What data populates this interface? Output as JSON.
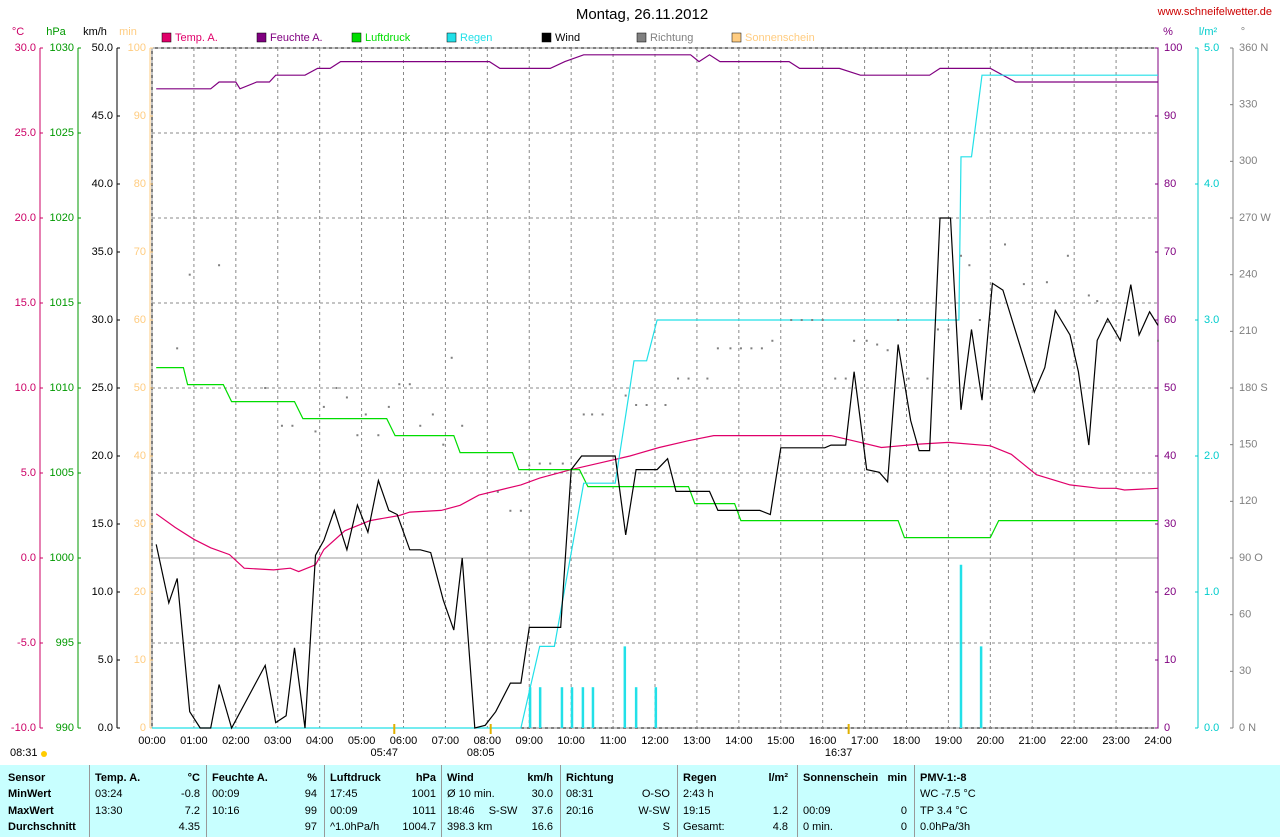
{
  "chart_data": {
    "type": "line",
    "title": "Montag, 26.11.2012",
    "source": "www.schneifelwetter.de",
    "xlim": [
      0,
      24
    ],
    "xticks": [
      {
        "value": 0,
        "label": "00:00"
      },
      {
        "value": 1,
        "label": "01:00"
      },
      {
        "value": 2,
        "label": "02:00"
      },
      {
        "value": 3,
        "label": "03:00"
      },
      {
        "value": 4,
        "label": "04:00"
      },
      {
        "value": 5,
        "label": "05:00"
      },
      {
        "value": 6,
        "label": "06:00"
      },
      {
        "value": 7,
        "label": "07:00"
      },
      {
        "value": 8,
        "label": "08:00"
      },
      {
        "value": 9,
        "label": "09:00"
      },
      {
        "value": 10,
        "label": "10:00"
      },
      {
        "value": 11,
        "label": "11:00"
      },
      {
        "value": 12,
        "label": "12:00"
      },
      {
        "value": 13,
        "label": "13:00"
      },
      {
        "value": 14,
        "label": "14:00"
      },
      {
        "value": 15,
        "label": "15:00"
      },
      {
        "value": 16,
        "label": "16:00"
      },
      {
        "value": 17,
        "label": "17:00"
      },
      {
        "value": 18,
        "label": "18:00"
      },
      {
        "value": 19,
        "label": "19:00"
      },
      {
        "value": 20,
        "label": "20:00"
      },
      {
        "value": 21,
        "label": "21:00"
      },
      {
        "value": 22,
        "label": "22:00"
      },
      {
        "value": 23,
        "label": "23:00"
      },
      {
        "value": 24,
        "label": "24:00"
      }
    ],
    "grid": true,
    "y_axes": [
      {
        "label": "°C",
        "side": "left",
        "color": "#cc0066",
        "ylim": [
          -10,
          30
        ],
        "yticks": [
          {
            "value": -10,
            "label": "-10.0"
          },
          {
            "value": -5,
            "label": "-5.0"
          },
          {
            "value": 0,
            "label": "0.0"
          },
          {
            "value": 5,
            "label": "5.0"
          },
          {
            "value": 10,
            "label": "10.0"
          },
          {
            "value": 15,
            "label": "15.0"
          },
          {
            "value": 20,
            "label": "20.0"
          },
          {
            "value": 25,
            "label": "25.0"
          },
          {
            "value": 30,
            "label": "30.0"
          }
        ]
      },
      {
        "label": "hPa",
        "side": "left",
        "color": "#009900",
        "ylim": [
          990,
          1030
        ],
        "yticks": [
          990,
          995,
          1000,
          1005,
          1010,
          1015,
          1020,
          1025,
          1030
        ]
      },
      {
        "label": "km/h",
        "side": "left",
        "color": "#000000",
        "ylim": [
          0,
          50
        ],
        "yticks": [
          {
            "value": 0,
            "label": "0.0"
          },
          {
            "value": 5,
            "label": "5.0"
          },
          {
            "value": 10,
            "label": "10.0"
          },
          {
            "value": 15,
            "label": "15.0"
          },
          {
            "value": 20,
            "label": "20.0"
          },
          {
            "value": 25,
            "label": "25.0"
          },
          {
            "value": 30,
            "label": "30.0"
          },
          {
            "value": 35,
            "label": "35.0"
          },
          {
            "value": 40,
            "label": "40.0"
          },
          {
            "value": 45,
            "label": "45.0"
          },
          {
            "value": 50,
            "label": "50.0"
          }
        ]
      },
      {
        "label": "min",
        "side": "left",
        "color": "#ffcc80",
        "ylim": [
          0,
          100
        ],
        "yticks": [
          0,
          10,
          20,
          30,
          40,
          50,
          60,
          70,
          80,
          90,
          100
        ]
      },
      {
        "label": "%",
        "side": "right",
        "color": "#800080",
        "ylim": [
          0,
          100
        ],
        "yticks": [
          0,
          10,
          20,
          30,
          40,
          50,
          60,
          70,
          80,
          90,
          100
        ]
      },
      {
        "label": "l/m²",
        "side": "right",
        "color": "#00cccc",
        "ylim": [
          0,
          5
        ],
        "yticks": [
          {
            "value": 0,
            "label": "0.0"
          },
          {
            "value": 1,
            "label": "1.0"
          },
          {
            "value": 2,
            "label": "2.0"
          },
          {
            "value": 3,
            "label": "3.0"
          },
          {
            "value": 4,
            "label": "4.0"
          },
          {
            "value": 5,
            "label": "5.0"
          }
        ]
      },
      {
        "label": "°",
        "side": "right",
        "color": "#808080",
        "ylim": [
          0,
          360
        ],
        "yticks": [
          {
            "value": 0,
            "label": "0 N"
          },
          30,
          60,
          {
            "value": 90,
            "label": "90 O"
          },
          120,
          150,
          {
            "value": 180,
            "label": "180 S"
          },
          210,
          240,
          {
            "value": 270,
            "label": "270 W"
          },
          300,
          330,
          {
            "value": 360,
            "label": "360 N"
          }
        ]
      }
    ],
    "series": [
      {
        "name": "Temp. A.",
        "color": "#e0006a",
        "axis": "°C",
        "x": [
          0.1,
          0.55,
          1.0,
          1.4,
          1.85,
          2.2,
          2.9,
          3.3,
          3.5,
          3.9,
          4.1,
          4.6,
          5.2,
          5.9,
          6.15,
          6.9,
          7.35,
          7.8,
          8.3,
          8.8,
          9.25,
          10.0,
          10.7,
          11.4,
          12.1,
          12.8,
          13.4,
          16.2,
          16.9,
          17.4,
          18.3,
          19.0,
          20.0,
          20.5,
          21.1,
          21.9,
          22.6,
          23.0,
          23.2,
          24.0
        ],
        "values": [
          2.6,
          1.8,
          1.1,
          0.6,
          0.2,
          -0.6,
          -0.7,
          -0.6,
          -0.8,
          -0.4,
          0.5,
          1.6,
          2.2,
          2.5,
          2.7,
          2.8,
          3.1,
          3.7,
          4.0,
          4.3,
          4.7,
          5.2,
          5.6,
          6.0,
          6.5,
          6.9,
          7.2,
          7.2,
          6.8,
          6.5,
          6.7,
          6.8,
          6.6,
          6.1,
          4.9,
          4.3,
          4.1,
          4.1,
          4.0,
          4.1
        ]
      },
      {
        "name": "Feuchte A.",
        "color": "#800080",
        "axis": "%",
        "x": [
          0.1,
          1.4,
          1.6,
          2.0,
          2.1,
          2.5,
          2.8,
          2.95,
          3.65,
          3.95,
          4.25,
          4.5,
          8.05,
          8.3,
          9.5,
          9.85,
          10.3,
          12.85,
          13.05,
          13.3,
          13.55,
          15.2,
          15.45,
          16.4,
          16.9,
          18.55,
          18.8,
          20.0,
          20.6,
          24.0
        ],
        "values": [
          94,
          94,
          95,
          95,
          94,
          95,
          95,
          96,
          96,
          97,
          97,
          98,
          98,
          97,
          97,
          98,
          99,
          99,
          98,
          99,
          98,
          98,
          97,
          97,
          96,
          96,
          97,
          97,
          95,
          95
        ]
      },
      {
        "name": "Luftdruck",
        "color": "#00dd00",
        "axis": "hPa",
        "x": [
          0.1,
          0.75,
          0.85,
          1.7,
          1.9,
          3.4,
          3.6,
          5.6,
          5.8,
          7.2,
          7.35,
          8.6,
          8.75,
          10.2,
          10.4,
          12.8,
          12.95,
          13.9,
          14.05,
          17.8,
          17.95,
          20.0,
          20.2,
          24.0
        ],
        "values": [
          1011.2,
          1011.2,
          1010.2,
          1010.2,
          1009.2,
          1009.2,
          1008.2,
          1008.2,
          1007.2,
          1007.2,
          1006.2,
          1006.2,
          1005.2,
          1005.2,
          1004.2,
          1004.2,
          1003.2,
          1003.2,
          1002.2,
          1002.2,
          1001.2,
          1001.2,
          1002.2,
          1002.2
        ]
      },
      {
        "name": "Regen",
        "color": "#22e0e8",
        "axis": "l/m²",
        "x": [
          0.0,
          8.8,
          9.25,
          9.6,
          10.3,
          11.05,
          11.4,
          11.5,
          11.8,
          12.05,
          19.25,
          19.3,
          19.55,
          19.8,
          24.0
        ],
        "values": [
          0,
          0,
          0.6,
          0.6,
          1.8,
          1.8,
          2.5,
          2.7,
          2.7,
          3.0,
          3.0,
          4.2,
          4.2,
          4.8,
          4.8
        ],
        "bars": {
          "x": [
            9.02,
            9.26,
            9.78,
            10.02,
            10.28,
            10.52,
            11.28,
            11.55,
            12.02,
            19.3,
            19.78
          ],
          "values": [
            0.3,
            0.3,
            0.3,
            0.3,
            0.3,
            0.3,
            0.6,
            0.3,
            0.3,
            1.2,
            0.6
          ]
        }
      },
      {
        "name": "Wind",
        "color": "#000000",
        "axis": "km/h",
        "x": [
          0.1,
          0.4,
          0.6,
          0.9,
          1.15,
          1.4,
          1.6,
          1.9,
          2.7,
          2.95,
          3.2,
          3.4,
          3.65,
          3.9,
          4.1,
          4.35,
          4.65,
          4.9,
          5.15,
          5.4,
          5.65,
          5.85,
          6.15,
          6.4,
          6.65,
          6.95,
          7.2,
          7.4,
          7.7,
          7.95,
          8.2,
          8.55,
          8.8,
          9.0,
          9.75,
          10.0,
          10.25,
          11.05,
          11.3,
          11.55,
          12.05,
          12.3,
          12.5,
          13.3,
          13.5,
          14.5,
          14.75,
          15.0,
          16.05,
          16.2,
          16.55,
          16.75,
          17.05,
          17.35,
          17.55,
          17.8,
          18.1,
          18.3,
          18.55,
          18.8,
          19.05,
          19.3,
          19.55,
          19.8,
          20.05,
          20.3,
          21.05,
          21.3,
          21.55,
          21.9,
          22.1,
          22.35,
          22.55,
          22.8,
          23.1,
          23.35,
          23.55,
          23.8,
          24.0
        ],
        "values": [
          13.5,
          9.2,
          11.0,
          1.2,
          0,
          0,
          3.2,
          0,
          4.6,
          0.4,
          0.9,
          5.9,
          0,
          12.7,
          13.8,
          16.0,
          13.1,
          16.4,
          14.4,
          18.2,
          16.0,
          15.7,
          13.1,
          13.1,
          12.9,
          9.4,
          7.2,
          12.5,
          0,
          0.2,
          1.2,
          3.3,
          3.3,
          7.4,
          7.4,
          19.0,
          20.0,
          20.0,
          14.2,
          19.0,
          19.0,
          19.8,
          17.4,
          17.4,
          16.0,
          16.0,
          15.7,
          20.6,
          20.6,
          20.8,
          20.8,
          26.2,
          19.0,
          18.8,
          18.1,
          28.2,
          22.6,
          20.4,
          20.4,
          37.5,
          37.5,
          23.4,
          29.3,
          24.1,
          32.7,
          32.2,
          24.7,
          26.5,
          30.7,
          28.9,
          26.2,
          20.8,
          28.5,
          30.1,
          28.5,
          32.6,
          28.9,
          30.6,
          29.6
        ]
      },
      {
        "name": "Richtung",
        "color": "#808080",
        "axis": "°",
        "style": "dots",
        "x": [
          0.6,
          0.9,
          1.6,
          2.7,
          3.1,
          3.35,
          3.9,
          4.1,
          4.4,
          4.65,
          4.9,
          5.1,
          5.4,
          5.65,
          5.9,
          6.15,
          6.4,
          6.7,
          6.95,
          7.15,
          7.4,
          8.25,
          8.55,
          8.8,
          9.0,
          9.25,
          9.5,
          9.8,
          10.3,
          10.5,
          10.75,
          11.3,
          11.55,
          11.8,
          12.25,
          12.55,
          12.8,
          13.25,
          13.5,
          13.8,
          14.05,
          14.3,
          14.55,
          14.8,
          15.25,
          15.5,
          15.75,
          16.0,
          16.3,
          16.55,
          16.75,
          17.05,
          17.3,
          17.55,
          17.8,
          18.05,
          18.5,
          18.75,
          19.0,
          19.3,
          19.5,
          19.75,
          20.35,
          20.8,
          21.35,
          21.85,
          22.35,
          22.55,
          22.8,
          23.3,
          24.0
        ],
        "values": [
          201,
          240,
          245,
          180,
          160,
          160,
          157,
          170,
          180,
          175,
          155,
          166,
          155,
          170,
          182,
          182,
          160,
          166,
          150,
          196,
          160,
          125,
          115,
          115,
          139,
          140,
          140,
          140,
          166,
          166,
          166,
          176,
          171,
          171,
          171,
          185,
          185,
          185,
          201,
          201,
          201,
          201,
          201,
          205,
          216,
          216,
          216,
          216,
          185,
          185,
          205,
          205,
          203,
          200,
          216,
          185,
          185,
          211,
          211,
          250,
          245,
          216,
          256,
          235,
          236,
          250,
          229,
          226,
          215,
          216,
          205
        ]
      },
      {
        "name": "Sonnenschein",
        "color": "#ffcc80",
        "axis": "min",
        "x": [],
        "values": []
      }
    ],
    "annotations": [
      {
        "x": 5.78,
        "label": "05:47"
      },
      {
        "x": 8.08,
        "label": "08:05"
      },
      {
        "x": 16.62,
        "label": "16:37"
      }
    ]
  },
  "footer_note": "08:31",
  "table": {
    "header": [
      [
        "Sensor"
      ],
      [
        "Temp. A.",
        "°C"
      ],
      [
        "Feuchte A.",
        "%"
      ],
      [
        "Luftdruck",
        "hPa"
      ],
      [
        "Wind",
        "km/h"
      ],
      [
        "Richtung"
      ],
      [
        "Regen",
        "l/m²"
      ],
      [
        "Sonnenschein",
        "min"
      ],
      [
        "PMV-1:-8"
      ]
    ],
    "rows": [
      [
        [
          "MinWert"
        ],
        [
          "03:24",
          "-0.8"
        ],
        [
          "00:09",
          "94"
        ],
        [
          "17:45",
          "1001"
        ],
        [
          "Ø 10 min.",
          "30.0"
        ],
        [
          "08:31",
          "O-SO"
        ],
        [
          "2:43 h"
        ],
        null,
        [
          "WC -7.5 °C"
        ]
      ],
      [
        [
          "MaxWert"
        ],
        [
          "13:30",
          "7.2"
        ],
        [
          "10:16",
          "99"
        ],
        [
          "00:09",
          "1011"
        ],
        [
          "18:46",
          "S-SW",
          "37.6"
        ],
        [
          "20:16",
          "W-SW"
        ],
        [
          "19:15",
          "1.2"
        ],
        [
          "00:09",
          "0"
        ],
        [
          "TP 3.4 °C"
        ]
      ],
      [
        [
          "Durchschnitt"
        ],
        [
          null,
          "4.35"
        ],
        [
          null,
          "97"
        ],
        [
          "^1.0hPa/h",
          "1004.7"
        ],
        [
          "398.3 km",
          "16.6"
        ],
        [
          null,
          "S"
        ],
        [
          "Gesamt:",
          "4.8"
        ],
        [
          "0 min.",
          "0"
        ],
        [
          "0.0hPa/3h"
        ]
      ]
    ]
  }
}
